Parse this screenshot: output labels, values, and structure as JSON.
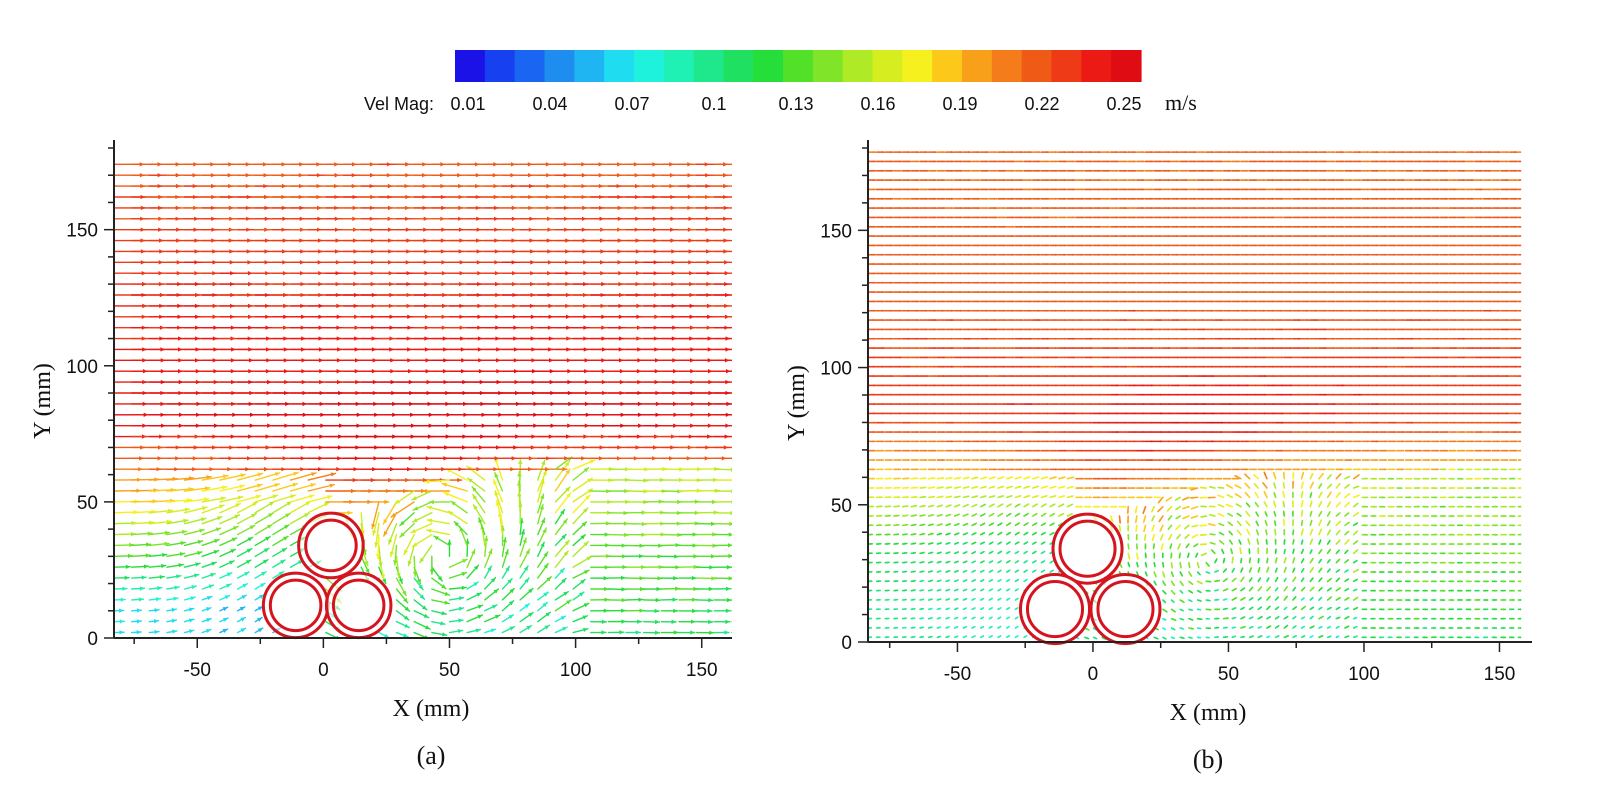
{
  "colorbar": {
    "label": "Vel Mag:",
    "unit": "m/s",
    "ticks": [
      "0.01",
      "0.04",
      "0.07",
      "0.1",
      "0.13",
      "0.16",
      "0.19",
      "0.22",
      "0.25"
    ],
    "colors": [
      "#1a12e6",
      "#1740f0",
      "#1a66f2",
      "#1f8cf0",
      "#1fb4f2",
      "#1fdcf0",
      "#1ff2dc",
      "#1ff0b4",
      "#1fe88c",
      "#1fe060",
      "#26de3a",
      "#52e028",
      "#80e428",
      "#aeea26",
      "#d6ee1f",
      "#f6f01f",
      "#fcc81a",
      "#f8a01a",
      "#f47c1a",
      "#f05a17",
      "#ee3a17",
      "#ec1a14",
      "#e00c14"
    ]
  },
  "chart_data": [
    {
      "type": "vector_field",
      "panel_label": "(a)",
      "xlabel": "X (mm)",
      "ylabel": "Y (mm)",
      "xticks": [
        -50,
        0,
        50,
        100,
        150
      ],
      "yticks": [
        0,
        50,
        100,
        150
      ],
      "xlim": [
        -83,
        162
      ],
      "ylim": [
        0,
        180
      ],
      "data_extent": {
        "x": [
          -83,
          162
        ],
        "y": [
          0,
          176
        ]
      },
      "colorbar_range": [
        0.01,
        0.25
      ],
      "cylinders": [
        {
          "cx": 3,
          "cy": 34,
          "r": 12
        },
        {
          "cx": -11,
          "cy": 12,
          "r": 12
        },
        {
          "cx": 14,
          "cy": 12,
          "r": 12
        }
      ],
      "velocity_profile": [
        {
          "y": 170,
          "vmag": 0.215
        },
        {
          "y": 140,
          "vmag": 0.225
        },
        {
          "y": 110,
          "vmag": 0.232
        },
        {
          "y": 80,
          "vmag": 0.24
        },
        {
          "y": 55,
          "vmag": 0.19
        },
        {
          "y": 30,
          "vmag": 0.13
        },
        {
          "y": 10,
          "vmag": 0.07
        }
      ]
    },
    {
      "type": "vector_field",
      "panel_label": "(b)",
      "xlabel": "X (mm)",
      "ylabel": "Y (mm)",
      "xticks": [
        -50,
        0,
        50,
        100,
        150
      ],
      "yticks": [
        0,
        50,
        100,
        150
      ],
      "xlim": [
        -83,
        162
      ],
      "ylim": [
        0,
        180
      ],
      "data_extent": {
        "x": [
          -83,
          158
        ],
        "y": [
          0,
          180
        ]
      },
      "colorbar_range": [
        0.01,
        0.25
      ],
      "cylinders": [
        {
          "cx": -2,
          "cy": 34,
          "r": 12
        },
        {
          "cx": -14,
          "cy": 12,
          "r": 12
        },
        {
          "cx": 12,
          "cy": 12,
          "r": 12
        }
      ],
      "velocity_profile": [
        {
          "y": 170,
          "vmag": 0.21
        },
        {
          "y": 120,
          "vmag": 0.215
        },
        {
          "y": 85,
          "vmag": 0.225
        },
        {
          "y": 60,
          "vmag": 0.18
        },
        {
          "y": 35,
          "vmag": 0.12
        },
        {
          "y": 10,
          "vmag": 0.1
        }
      ]
    }
  ]
}
